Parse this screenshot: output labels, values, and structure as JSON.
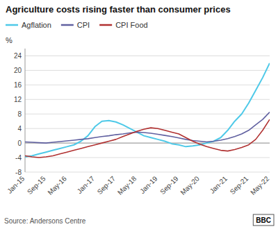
{
  "chart_data": {
    "type": "line",
    "title": "Agriculture costs rising faster than consumer prices",
    "ylabel": "%",
    "annotations": [
      "Source: Andersons Centre",
      "BBC"
    ],
    "categories": [
      "Jan-15",
      null,
      null,
      "Sep-15",
      null,
      null,
      "May-16",
      null,
      null,
      null,
      "Jan-17",
      null,
      null,
      "Sep-17",
      null,
      null,
      "May-18",
      null,
      null,
      "Jan-19",
      null,
      null,
      "Sep-19",
      null,
      null,
      "May-20",
      null,
      null,
      null,
      "Jan-21",
      null,
      null,
      "Sep-21",
      null,
      null,
      "May-22"
    ],
    "series": [
      {
        "name": "Agflation",
        "color": "#4ec9e8",
        "values": [
          -3.8,
          -3.5,
          -3.0,
          -2.5,
          -2.0,
          -1.5,
          -1.0,
          -0.5,
          0.5,
          2.0,
          4.5,
          6.0,
          6.2,
          5.8,
          5.0,
          4.0,
          3.0,
          2.0,
          1.5,
          1.0,
          0.5,
          -0.2,
          -0.5,
          -1.0,
          -0.8,
          -0.5,
          0.0,
          0.5,
          1.5,
          3.5,
          6.0,
          8.0,
          11.0,
          14.5,
          18.0,
          22.0
        ]
      },
      {
        "name": "CPI",
        "color": "#6060a0",
        "values": [
          0.3,
          0.2,
          0.1,
          0.0,
          0.2,
          0.4,
          0.6,
          0.8,
          1.0,
          1.2,
          1.5,
          1.8,
          2.0,
          2.3,
          2.5,
          2.8,
          3.0,
          2.9,
          2.7,
          2.4,
          2.1,
          1.8,
          1.4,
          1.0,
          0.7,
          0.5,
          0.3,
          0.5,
          0.8,
          1.2,
          1.8,
          2.5,
          3.5,
          5.0,
          6.5,
          8.5
        ]
      },
      {
        "name": "CPI Food",
        "color": "#b03030",
        "values": [
          -3.5,
          -3.8,
          -4.0,
          -3.8,
          -3.5,
          -3.0,
          -2.5,
          -2.0,
          -1.5,
          -1.0,
          -0.5,
          0.0,
          0.5,
          1.0,
          1.8,
          2.5,
          3.2,
          3.8,
          4.2,
          4.0,
          3.5,
          3.0,
          2.5,
          1.5,
          0.5,
          -0.3,
          -1.0,
          -1.5,
          -2.0,
          -2.2,
          -1.8,
          -1.2,
          -0.5,
          1.0,
          3.5,
          6.5
        ]
      }
    ],
    "ylim": [
      -8,
      26
    ],
    "yticks": [
      -8,
      -4,
      0,
      4,
      8,
      12,
      16,
      20,
      24
    ],
    "grid": true,
    "legend": "top"
  }
}
